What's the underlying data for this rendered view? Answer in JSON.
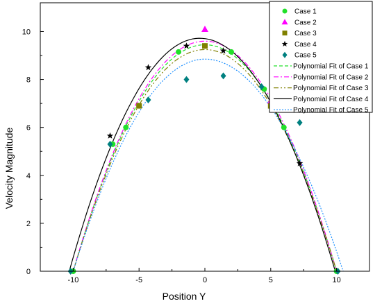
{
  "chart_data": {
    "type": "scatter",
    "xlabel": "Position Y",
    "ylabel": "Velocity Magnitude",
    "xlim": [
      -12.5,
      12.5
    ],
    "ylim": [
      0,
      11.2
    ],
    "xticks": [
      -10,
      -5,
      0,
      5,
      10
    ],
    "yticks": [
      0,
      2,
      4,
      6,
      8,
      10
    ],
    "legend_position": "top-right",
    "grid": false,
    "series": [
      {
        "name": "Case 1",
        "kind": "points",
        "marker": "circle",
        "color": "#22e02a",
        "x": [
          -10,
          -7,
          -6,
          -5,
          -2,
          0,
          2,
          4.5,
          6,
          10
        ],
        "y": [
          0,
          5.3,
          6.0,
          6.9,
          9.15,
          9.4,
          9.15,
          7.6,
          6.0,
          0
        ]
      },
      {
        "name": "Case 2",
        "kind": "points",
        "marker": "triangle",
        "color": "#ff00ff",
        "x": [
          0,
          5
        ],
        "y": [
          10.1,
          7.1
        ]
      },
      {
        "name": "Case 3",
        "kind": "points",
        "marker": "square",
        "color": "#808000",
        "x": [
          -5,
          0,
          5
        ],
        "y": [
          6.9,
          9.4,
          6.9
        ]
      },
      {
        "name": "Case 4",
        "kind": "points",
        "marker": "star",
        "color": "#000000",
        "x": [
          -7.2,
          -4.3,
          -1.4,
          1.4,
          7.2
        ],
        "y": [
          5.65,
          8.5,
          9.4,
          9.2,
          4.5
        ]
      },
      {
        "name": "Case 5",
        "kind": "points",
        "marker": "diamond",
        "color": "#008080",
        "x": [
          -10.2,
          -7.2,
          -4.3,
          -1.4,
          1.4,
          4.3,
          7.2,
          10.1
        ],
        "y": [
          0,
          5.3,
          7.15,
          8.0,
          8.15,
          7.7,
          6.2,
          0
        ]
      },
      {
        "name": "Polynomial Fit of Case 1",
        "kind": "fit",
        "dash": "5,3",
        "color": "#22e02a",
        "vertex": [
          0,
          9.45
        ],
        "roots": [
          -10,
          10
        ]
      },
      {
        "name": "Polynomial Fit of Case 2",
        "kind": "fit",
        "dash": "7,3,2,3",
        "color": "#ff00ff",
        "vertex": [
          0,
          9.6
        ],
        "roots": [
          -10,
          10
        ]
      },
      {
        "name": "Polynomial Fit of Case 3",
        "kind": "fit",
        "dash": "7,3,2,3,2,3",
        "color": "#808000",
        "vertex": [
          0,
          9.25
        ],
        "roots": [
          -10,
          10
        ]
      },
      {
        "name": "Polynomial Fit of Case 4",
        "kind": "fit",
        "dash": "",
        "color": "#000000",
        "vertex": [
          -0.4,
          9.72
        ],
        "roots": [
          -10.3,
          9.9
        ]
      },
      {
        "name": "Polynomial Fit of Case 5",
        "kind": "fit",
        "dash": "2,2",
        "color": "#1e90ff",
        "vertex": [
          0,
          8.85
        ],
        "roots": [
          -10,
          10.5
        ]
      }
    ]
  }
}
